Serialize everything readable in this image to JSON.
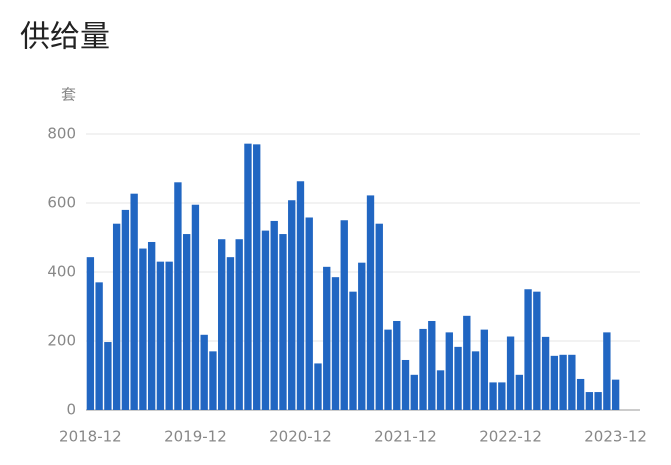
{
  "chart_data": {
    "type": "bar",
    "title": "供给量",
    "y_label": "套",
    "categories": [
      "2018-12",
      null,
      null,
      null,
      null,
      null,
      null,
      null,
      null,
      null,
      null,
      null,
      "2019-12",
      null,
      null,
      null,
      null,
      null,
      null,
      null,
      null,
      null,
      null,
      null,
      "2020-12",
      null,
      null,
      null,
      null,
      null,
      null,
      null,
      null,
      null,
      null,
      null,
      "2021-12",
      null,
      null,
      null,
      null,
      null,
      null,
      null,
      null,
      null,
      null,
      null,
      "2022-12",
      null,
      null,
      null,
      null,
      null,
      null,
      null,
      null,
      null,
      null,
      null,
      "2023-12"
    ],
    "values": [
      443,
      370,
      197,
      540,
      580,
      627,
      468,
      487,
      430,
      430,
      660,
      510,
      595,
      218,
      170,
      495,
      443,
      495,
      772,
      770,
      520,
      548,
      510,
      608,
      663,
      558,
      135,
      415,
      385,
      550,
      343,
      427,
      622,
      540,
      233,
      258,
      145,
      102,
      235,
      258,
      115,
      225,
      183,
      273,
      170,
      233,
      80,
      80,
      213,
      102,
      350,
      343,
      212,
      157,
      160,
      160,
      90,
      52,
      52,
      225,
      88
    ],
    "color": "#2166c2",
    "ylim": [
      0,
      800
    ],
    "yticks": [
      0,
      200,
      400,
      600,
      800
    ],
    "grid": true
  }
}
